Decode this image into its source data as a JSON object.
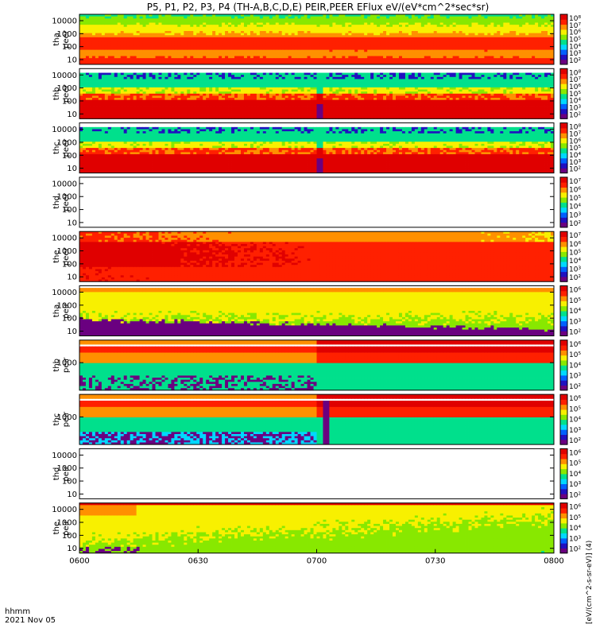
{
  "title": "P5, P1, P2, P3, P4 (TH-A,B,C,D,E) PEIR,PEER EFlux eV/(eV*cm^2*sec*sr)",
  "footer": {
    "row1_label": "hhmm",
    "row2_label": "2021 Nov 05"
  },
  "colorbar_unit_label": "[eV/(cm^2-s-sr-eV)] (4)",
  "colorscale": [
    "#6a0080",
    "#2010c0",
    "#0060ff",
    "#00d8ff",
    "#00e08c",
    "#88e800",
    "#f8f000",
    "#ff9000",
    "#ff2000",
    "#e00000"
  ],
  "chart_data": {
    "type": "heatmap",
    "x_ticks": [
      "0600",
      "0630",
      "0700",
      "0730",
      "0800"
    ],
    "xlim": [
      "0600",
      "0800"
    ],
    "y_scale": "log",
    "panels": [
      {
        "id": "tha_peer",
        "ylabel": [
          "tha",
          "peer"
        ],
        "yticks": [
          "10000",
          "1000",
          "100",
          "10"
        ],
        "cbar_ticks": [
          "10^8",
          "10^7",
          "10^6",
          "10^5",
          "10^4",
          "10^3",
          "10^2"
        ],
        "pattern": "dense_low_flat"
      },
      {
        "id": "thb_peer",
        "ylabel": [
          "thb",
          "peer"
        ],
        "yticks": [
          "10000",
          "1000",
          "100",
          "10"
        ],
        "cbar_ticks": [
          "10^8",
          "10^7",
          "10^6",
          "10^5",
          "10^4",
          "10^3",
          "10^2"
        ],
        "pattern": "noisy_top_gap_0700"
      },
      {
        "id": "thc_peer",
        "ylabel": [
          "thc",
          "peer"
        ],
        "yticks": [
          "10000",
          "1000",
          "100",
          "10"
        ],
        "cbar_ticks": [
          "10^8",
          "10^7",
          "10^6",
          "10^5",
          "10^4",
          "10^3",
          "10^2"
        ],
        "pattern": "noisy_top_gap_0700"
      },
      {
        "id": "thd_peer",
        "ylabel": [
          "thd",
          "peer"
        ],
        "yticks": [
          "10000",
          "1000",
          "100",
          "10"
        ],
        "cbar_ticks": [
          "10^7",
          "10^6",
          "10^5",
          "10^4",
          "10^3",
          "10^2"
        ],
        "pattern": "empty"
      },
      {
        "id": "the_peer",
        "ylabel": [
          "the",
          "peer"
        ],
        "yticks": [
          "10000",
          "1000",
          "100",
          "10"
        ],
        "cbar_ticks": [
          "10^7",
          "10^6",
          "10^5",
          "10^4",
          "10^3",
          "10^2"
        ],
        "pattern": "hot_red"
      },
      {
        "id": "tha_peir",
        "ylabel": [
          "tha",
          "peir"
        ],
        "yticks": [
          "10000",
          "1000",
          "100",
          "10"
        ],
        "cbar_ticks": [
          "10^6",
          "10^5",
          "10^4",
          "10^3",
          "10^2"
        ],
        "pattern": "green_black_low"
      },
      {
        "id": "thb_peir",
        "ylabel": [
          "thb",
          "peir"
        ],
        "yticks": [
          "1000"
        ],
        "cbar_ticks": [
          "10^6",
          "10^5",
          "10^4",
          "10^3",
          "10^2"
        ],
        "pattern": "band_switch_0700"
      },
      {
        "id": "thc_peir",
        "ylabel": [
          "thc",
          "peir"
        ],
        "yticks": [
          "1000"
        ],
        "cbar_ticks": [
          "10^6",
          "10^5",
          "10^4",
          "10^3",
          "10^2"
        ],
        "pattern": "band_switch_gap"
      },
      {
        "id": "thd_peir",
        "ylabel": [
          "thd",
          "peir"
        ],
        "yticks": [
          "10000",
          "1000",
          "100",
          "10"
        ],
        "cbar_ticks": [
          "10^6",
          "10^5",
          "10^4",
          "10^3",
          "10^2"
        ],
        "pattern": "empty"
      },
      {
        "id": "the_peir",
        "ylabel": [
          "the",
          "peir"
        ],
        "yticks": [
          "10000",
          "1000",
          "100",
          "10"
        ],
        "cbar_ticks": [
          "10^6",
          "10^5",
          "10^4",
          "10^3",
          "10^2"
        ],
        "pattern": "green_yellow"
      }
    ]
  }
}
